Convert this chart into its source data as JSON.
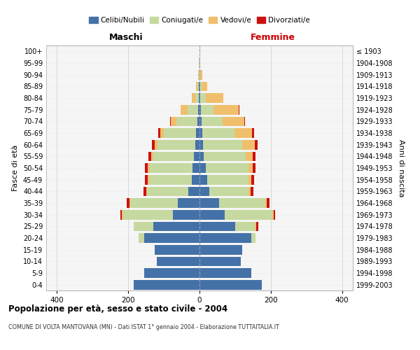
{
  "age_groups": [
    "0-4",
    "5-9",
    "10-14",
    "15-19",
    "20-24",
    "25-29",
    "30-34",
    "35-39",
    "40-44",
    "45-49",
    "50-54",
    "55-59",
    "60-64",
    "65-69",
    "70-74",
    "75-79",
    "80-84",
    "85-89",
    "90-94",
    "95-99",
    "100+"
  ],
  "birth_years": [
    "1999-2003",
    "1994-1998",
    "1989-1993",
    "1984-1988",
    "1979-1983",
    "1974-1978",
    "1969-1973",
    "1964-1968",
    "1959-1963",
    "1954-1958",
    "1949-1953",
    "1944-1948",
    "1939-1943",
    "1934-1938",
    "1929-1933",
    "1924-1928",
    "1919-1923",
    "1914-1918",
    "1909-1913",
    "1904-1908",
    "≤ 1903"
  ],
  "colors": {
    "celibi": "#4472a8",
    "coniugati": "#c5d9a0",
    "vedovi": "#f0bf6c",
    "divorziati": "#cc1111"
  },
  "maschi": {
    "celibi": [
      185,
      155,
      120,
      125,
      155,
      130,
      75,
      60,
      32,
      22,
      20,
      15,
      12,
      10,
      5,
      3,
      1,
      1,
      0,
      0,
      0
    ],
    "coniugati": [
      0,
      0,
      0,
      0,
      15,
      55,
      140,
      135,
      115,
      120,
      120,
      115,
      105,
      90,
      60,
      30,
      10,
      5,
      2,
      1,
      0
    ],
    "vedovi": [
      0,
      0,
      0,
      0,
      0,
      0,
      2,
      2,
      2,
      3,
      5,
      5,
      8,
      10,
      15,
      20,
      10,
      3,
      1,
      0,
      0
    ],
    "divorziati": [
      0,
      0,
      0,
      0,
      0,
      0,
      5,
      8,
      8,
      8,
      8,
      8,
      8,
      5,
      2,
      0,
      0,
      0,
      0,
      0,
      0
    ]
  },
  "femmine": {
    "nubili": [
      175,
      145,
      115,
      120,
      145,
      100,
      70,
      55,
      28,
      22,
      18,
      12,
      10,
      8,
      5,
      4,
      2,
      1,
      0,
      0,
      0
    ],
    "coniugate": [
      0,
      0,
      0,
      0,
      12,
      55,
      135,
      130,
      110,
      115,
      120,
      118,
      110,
      90,
      60,
      35,
      15,
      5,
      2,
      0,
      0
    ],
    "vedove": [
      0,
      0,
      0,
      0,
      0,
      5,
      3,
      3,
      5,
      8,
      12,
      20,
      35,
      50,
      60,
      70,
      50,
      15,
      5,
      2,
      0
    ],
    "divorziate": [
      0,
      0,
      0,
      0,
      0,
      5,
      5,
      8,
      8,
      8,
      8,
      8,
      8,
      5,
      2,
      2,
      0,
      0,
      0,
      0,
      0
    ]
  },
  "xlim": 430,
  "xticks": [
    -400,
    -200,
    0,
    200,
    400
  ],
  "title": "Popolazione per età, sesso e stato civile - 2004",
  "subtitle": "COMUNE DI VOLTA MANTOVANA (MN) - Dati ISTAT 1° gennaio 2004 - Elaborazione TUTTAITALIA.IT",
  "ylabel_left": "Fasce di età",
  "ylabel_right": "Anni di nascita",
  "label_maschi": "Maschi",
  "label_femmine": "Femmine",
  "legend_labels": [
    "Celibi/Nubili",
    "Coniugati/e",
    "Vedovi/e",
    "Divorziati/e"
  ],
  "bg_color": "#f5f5f5",
  "grid_color": "#cccccc"
}
